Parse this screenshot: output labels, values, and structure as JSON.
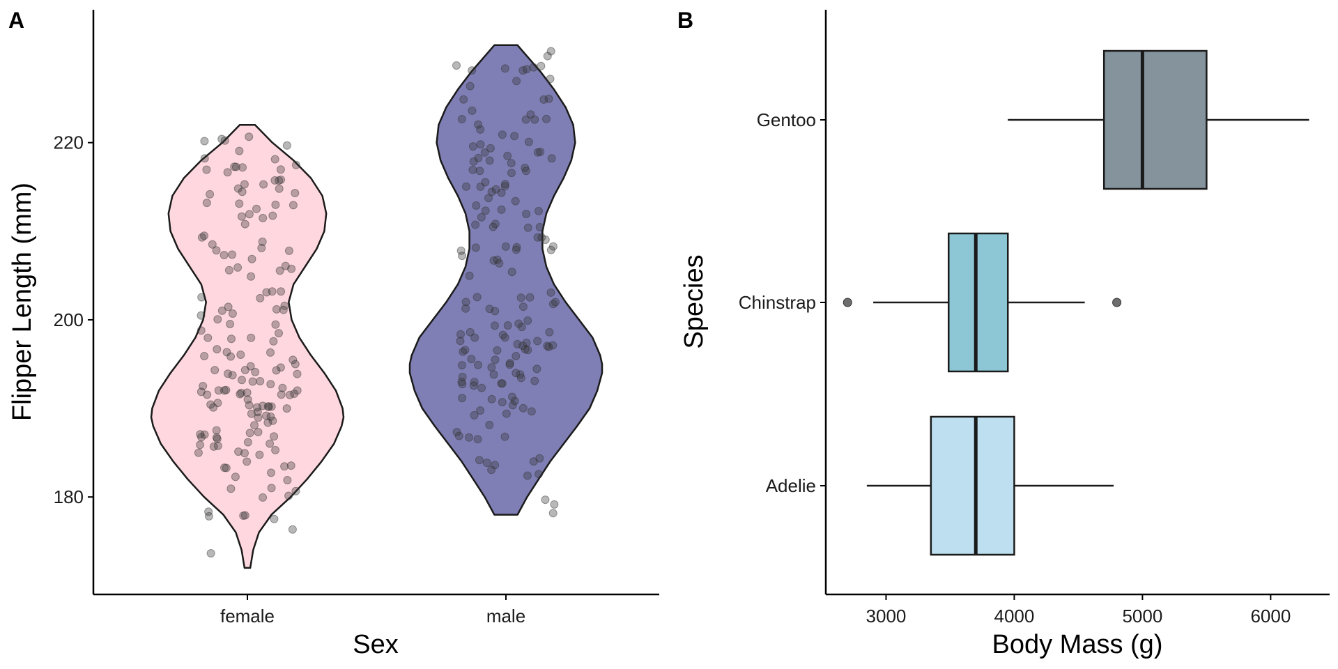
{
  "chart_data": [
    {
      "type": "violin",
      "panel_label": "A",
      "xlabel": "Sex",
      "ylabel": "Flipper Length (mm)",
      "categories": [
        "female",
        "male"
      ],
      "ylim": [
        169,
        235
      ],
      "yticks": [
        180,
        200,
        220
      ],
      "grid": false,
      "legend": "none",
      "colors": {
        "female": "#ffd8df",
        "male": "#7f7fb5",
        "outline": "#1a1a1a",
        "points": "#333333"
      },
      "series": [
        {
          "category": "female",
          "min": 172,
          "max": 222,
          "density": [
            [
              172,
              0.03
            ],
            [
              174,
              0.06
            ],
            [
              176,
              0.12
            ],
            [
              178,
              0.25
            ],
            [
              180,
              0.45
            ],
            [
              182,
              0.62
            ],
            [
              184,
              0.77
            ],
            [
              186,
              0.9
            ],
            [
              188,
              0.98
            ],
            [
              189,
              1.0
            ],
            [
              190,
              0.99
            ],
            [
              192,
              0.92
            ],
            [
              194,
              0.8
            ],
            [
              196,
              0.66
            ],
            [
              198,
              0.54
            ],
            [
              200,
              0.46
            ],
            [
              202,
              0.43
            ],
            [
              204,
              0.48
            ],
            [
              206,
              0.6
            ],
            [
              208,
              0.72
            ],
            [
              210,
              0.8
            ],
            [
              212,
              0.82
            ],
            [
              214,
              0.78
            ],
            [
              216,
              0.66
            ],
            [
              218,
              0.48
            ],
            [
              220,
              0.26
            ],
            [
              222,
              0.08
            ]
          ]
        },
        {
          "category": "male",
          "min": 178,
          "max": 231,
          "density": [
            [
              178,
              0.12
            ],
            [
              180,
              0.22
            ],
            [
              182,
              0.34
            ],
            [
              184,
              0.46
            ],
            [
              186,
              0.6
            ],
            [
              188,
              0.74
            ],
            [
              190,
              0.87
            ],
            [
              192,
              0.95
            ],
            [
              194,
              1.0
            ],
            [
              195,
              1.0
            ],
            [
              196,
              0.98
            ],
            [
              198,
              0.9
            ],
            [
              200,
              0.76
            ],
            [
              202,
              0.62
            ],
            [
              204,
              0.5
            ],
            [
              206,
              0.42
            ],
            [
              208,
              0.38
            ],
            [
              210,
              0.38
            ],
            [
              212,
              0.42
            ],
            [
              214,
              0.5
            ],
            [
              216,
              0.6
            ],
            [
              218,
              0.68
            ],
            [
              220,
              0.72
            ],
            [
              222,
              0.7
            ],
            [
              224,
              0.62
            ],
            [
              226,
              0.5
            ],
            [
              228,
              0.36
            ],
            [
              230,
              0.2
            ],
            [
              231,
              0.12
            ]
          ]
        }
      ]
    },
    {
      "type": "boxplot",
      "orientation": "horizontal",
      "panel_label": "B",
      "xlabel": "Body Mass (g)",
      "ylabel": "Species",
      "categories": [
        "Adelie",
        "Chinstrap",
        "Gentoo"
      ],
      "xlim": [
        2530,
        6460
      ],
      "xticks": [
        3000,
        4000,
        5000,
        6000
      ],
      "grid": false,
      "legend": "none",
      "series": [
        {
          "name": "Adelie",
          "whisker_low": 2850,
          "q1": 3350,
          "median": 3700,
          "q3": 4000,
          "whisker_high": 4775,
          "outliers": [],
          "color": "#bddff0"
        },
        {
          "name": "Chinstrap",
          "whisker_low": 2900,
          "q1": 3488,
          "median": 3700,
          "q3": 3950,
          "whisker_high": 4550,
          "outliers": [
            2700,
            4800
          ],
          "color": "#8dc7d6"
        },
        {
          "name": "Gentoo",
          "whisker_low": 3950,
          "q1": 4700,
          "median": 5000,
          "q3": 5500,
          "whisker_high": 6300,
          "outliers": [],
          "color": "#84939c"
        }
      ]
    }
  ]
}
